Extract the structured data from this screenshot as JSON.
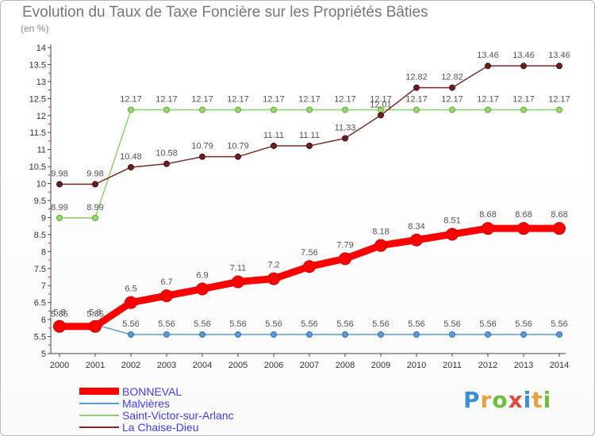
{
  "title": "Evolution du Taux de Taxe Foncière sur les Propriétés Bâties",
  "unit": "(en %)",
  "brand": {
    "text": "Proxiti",
    "letter_colors": [
      "#3a8fd6",
      "#e9a13b",
      "#6cbf3b",
      "#e04a3b",
      "#3a8fd6",
      "#e9a13b",
      "#6cbf3b"
    ]
  },
  "chart_data": {
    "type": "line",
    "x": [
      "2000",
      "2001",
      "2002",
      "2003",
      "2004",
      "2005",
      "2006",
      "2007",
      "2008",
      "2009",
      "2010",
      "2011",
      "2012",
      "2013",
      "2014"
    ],
    "ylim": [
      5,
      14
    ],
    "yticks": [
      "5",
      "5.5",
      "6",
      "6.5",
      "7",
      "7.5",
      "8",
      "8.5",
      "9",
      "9.5",
      "10",
      "10.5",
      "11",
      "11.5",
      "12",
      "12.5",
      "13",
      "13.5",
      "14"
    ],
    "grid": false,
    "legend_position": "bottom-left",
    "series": [
      {
        "name": "BONNEVAL",
        "color": "#ff0000",
        "values": [
          5.8,
          5.8,
          6.5,
          6.7,
          6.9,
          7.11,
          7.2,
          7.56,
          7.79,
          8.18,
          8.34,
          8.51,
          8.68,
          8.68,
          8.68
        ],
        "labels": [
          "5.8",
          "5.8",
          "6.5",
          "6.7",
          "6.9",
          "7.11",
          "7.2",
          "7.56",
          "7.79",
          "8.18",
          "8.34",
          "8.51",
          "8.68",
          "8.68",
          "8.68"
        ]
      },
      {
        "name": "Malvières",
        "color": "#5d9ad3",
        "values": [
          5.85,
          5.85,
          5.56,
          5.56,
          5.56,
          5.56,
          5.56,
          5.56,
          5.56,
          5.56,
          5.56,
          5.56,
          5.56,
          5.56,
          5.56
        ],
        "labels": [
          "5.85",
          "5.85",
          "5.56",
          "5.56",
          "5.56",
          "5.56",
          "5.56",
          "5.56",
          "5.56",
          "5.56",
          "5.56",
          "5.56",
          "5.56",
          "5.56",
          "5.56"
        ]
      },
      {
        "name": "Saint-Victor-sur-Arlanc",
        "color": "#8fd070",
        "values": [
          8.99,
          8.99,
          12.17,
          12.17,
          12.17,
          12.17,
          12.17,
          12.17,
          12.17,
          12.17,
          12.17,
          12.17,
          12.17,
          12.17,
          12.17
        ],
        "labels": [
          "8.99",
          "8.99",
          "12.17",
          "12.17",
          "12.17",
          "12.17",
          "12.17",
          "12.17",
          "12.17",
          "12.17",
          "12.17",
          "12.17",
          "12.17",
          "12.17",
          "12.17"
        ]
      },
      {
        "name": "La Chaise-Dieu",
        "color": "#7a2a2a",
        "values": [
          9.98,
          9.98,
          10.48,
          10.58,
          10.79,
          10.79,
          11.11,
          11.11,
          11.33,
          12.01,
          12.82,
          12.82,
          13.46,
          13.46,
          13.46
        ],
        "labels": [
          "9.98",
          "9.98",
          "10.48",
          "10.58",
          "10.79",
          "10.79",
          "11.11",
          "11.11",
          "11.33",
          "12.01",
          "12.82",
          "12.82",
          "13.46",
          "13.46",
          "13.46"
        ]
      }
    ]
  }
}
